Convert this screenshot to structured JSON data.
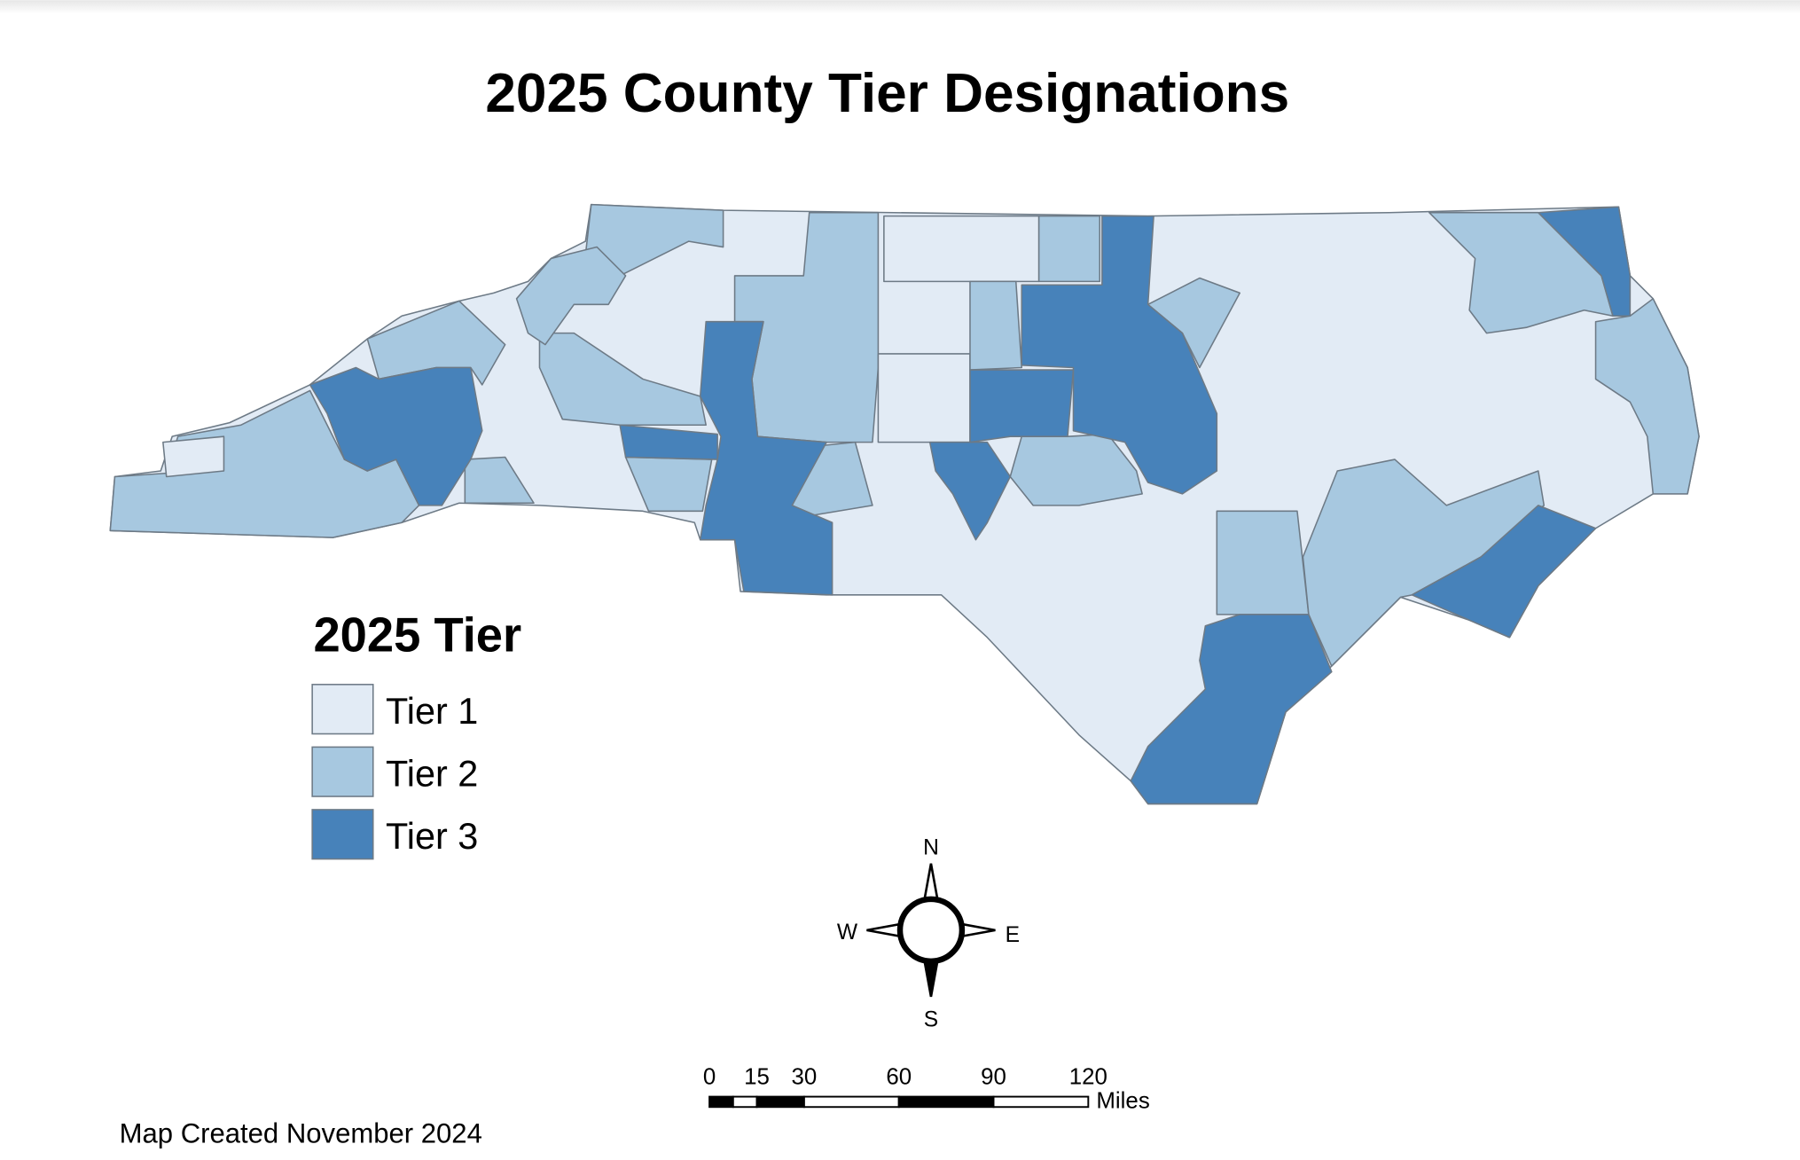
{
  "title": "2025 County Tier Designations",
  "legend": {
    "title": "2025 Tier",
    "items": [
      {
        "label": "Tier 1",
        "color": "#e2ebf5"
      },
      {
        "label": "Tier 2",
        "color": "#a7c8e0"
      },
      {
        "label": "Tier 3",
        "color": "#4782ba"
      }
    ]
  },
  "compass": {
    "north": "N",
    "east": "E",
    "south": "S",
    "west": "W"
  },
  "scale_bar": {
    "ticks": [
      0,
      15,
      30,
      60,
      90,
      120
    ],
    "unit": "Miles"
  },
  "footer": "Map Created November 2024"
}
